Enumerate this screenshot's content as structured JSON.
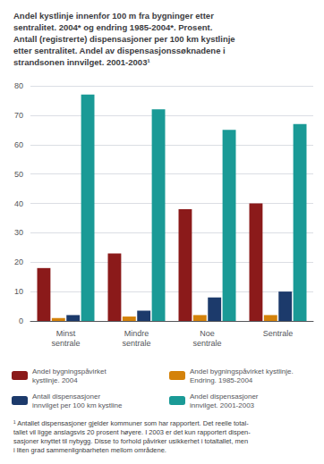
{
  "chart_data": {
    "type": "bar",
    "title": "Andel kystlinje innenfor 100 m fra bygninger etter\nsentralitet. 2004* og endring 1985-2004*. Prosent.\nAntall (registrerte) dispensasjoner per 100 km kystlinje\netter sentralitet. Andel av dispensasjonssøknadene i\nstrandsonen innvilget. 2001-2003¹",
    "categories": [
      "Minst\nsentrale",
      "Mindre\nsentrale",
      "Noe\nsentrale",
      "Sentrale"
    ],
    "series": [
      {
        "name": "Andel bygningspåvirket\nkystlinje. 2004",
        "color": "#8B1A1A",
        "values": [
          18,
          23,
          38,
          40
        ]
      },
      {
        "name": "Andel bygningspåvirket kystlinje.\nEndring. 1985-2004",
        "color": "#D4820A",
        "values": [
          1.0,
          1.5,
          2.0,
          2.0
        ]
      },
      {
        "name": "Antall dispensasjoner\ninnvilget per 100 km kystline",
        "color": "#1C3A6B",
        "values": [
          2,
          3.5,
          8,
          10
        ]
      },
      {
        "name": "Andel dispensasjoner\ninnvilget. 2001-2003",
        "color": "#1A9A96",
        "values": [
          77,
          72,
          65,
          67
        ]
      }
    ],
    "ylim": [
      0,
      80
    ],
    "yticks": [
      0,
      10,
      20,
      30,
      40,
      50,
      60,
      70,
      80
    ],
    "grid": true,
    "legend": "bottom",
    "annotations": [
      "¹ Antallet dispensasjoner gjelder kommuner som har rapportert. Det reelle total-\ntallet vil ligge anslagsvis 20 prosent høyere. I 2003 er det kun rapportert dispen-\nsasjoner knyttet til nybygg. Disse to forhold påvirker usikkerhet i totaltallet, men\ni liten grad sammenlignbarheten mellom områdene."
    ]
  }
}
